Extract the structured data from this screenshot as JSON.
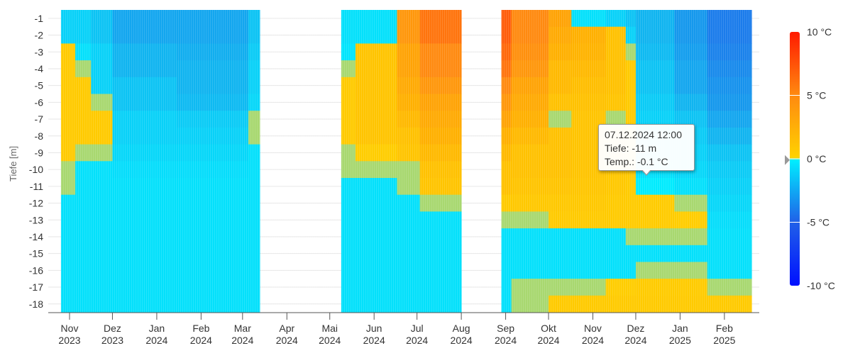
{
  "chart_data": {
    "type": "heatmap",
    "ylabel": "Tiefe [m]",
    "y_categories": [
      "-1",
      "-2",
      "-3",
      "-4",
      "-5",
      "-6",
      "-7",
      "-8",
      "-9",
      "-10",
      "-11",
      "-12",
      "-13",
      "-14",
      "-15",
      "-16",
      "-17",
      "-18"
    ],
    "x_ticks": [
      {
        "date": "2023-11-01",
        "month": "Nov",
        "year": "2023"
      },
      {
        "date": "2023-12-01",
        "month": "Dez",
        "year": "2023"
      },
      {
        "date": "2024-01-01",
        "month": "Jan",
        "year": "2024"
      },
      {
        "date": "2024-02-01",
        "month": "Feb",
        "year": "2024"
      },
      {
        "date": "2024-03-01",
        "month": "Mar",
        "year": "2024"
      },
      {
        "date": "2024-04-01",
        "month": "Apr",
        "year": "2024"
      },
      {
        "date": "2024-05-01",
        "month": "Mai",
        "year": "2024"
      },
      {
        "date": "2024-06-01",
        "month": "Jun",
        "year": "2024"
      },
      {
        "date": "2024-07-01",
        "month": "Jul",
        "year": "2024"
      },
      {
        "date": "2024-08-01",
        "month": "Aug",
        "year": "2024"
      },
      {
        "date": "2024-09-01",
        "month": "Sep",
        "year": "2024"
      },
      {
        "date": "2024-10-01",
        "month": "Okt",
        "year": "2024"
      },
      {
        "date": "2024-11-01",
        "month": "Nov",
        "year": "2024"
      },
      {
        "date": "2024-12-01",
        "month": "Dez",
        "year": "2024"
      },
      {
        "date": "2025-01-01",
        "month": "Jan",
        "year": "2025"
      },
      {
        "date": "2025-02-01",
        "month": "Feb",
        "year": "2025"
      }
    ],
    "x_range": [
      "2023-10-20",
      "2025-02-28"
    ],
    "columns": [
      {
        "start": "2023-10-26",
        "end": "2023-11-05",
        "t": [
          -1,
          -1,
          0.5,
          0.5,
          0.5,
          0.5,
          0.5,
          0.5,
          0.5,
          0,
          0,
          -0.5,
          -0.5,
          -0.5,
          -0.5,
          -0.5,
          -0.5,
          -0.5
        ]
      },
      {
        "start": "2023-11-05",
        "end": "2023-11-16",
        "t": [
          -1,
          -1,
          -0.5,
          0,
          0.5,
          0.5,
          0.5,
          0.5,
          0,
          -0.5,
          -0.5,
          -0.5,
          -0.5,
          -0.5,
          -0.5,
          -0.5,
          -0.5,
          -0.5
        ]
      },
      {
        "start": "2023-11-16",
        "end": "2023-12-01",
        "t": [
          -1.5,
          -1.5,
          -1,
          -1,
          -1,
          0,
          0.5,
          0.5,
          0,
          -0.5,
          -0.5,
          -0.5,
          -0.5,
          -0.5,
          -0.5,
          -0.5,
          -0.5,
          -0.5
        ]
      },
      {
        "start": "2023-12-01",
        "end": "2024-01-15",
        "t": [
          -2.5,
          -2.5,
          -2,
          -2,
          -1.5,
          -1.5,
          -1,
          -1,
          -0.8,
          -0.6,
          -0.5,
          -0.5,
          -0.5,
          -0.5,
          -0.5,
          -0.5,
          -0.5,
          -0.5
        ]
      },
      {
        "start": "2024-01-15",
        "end": "2024-03-05",
        "t": [
          -2.5,
          -2.5,
          -2.2,
          -2,
          -2,
          -1.8,
          -1.2,
          -1,
          -0.8,
          -0.6,
          -0.5,
          -0.5,
          -0.5,
          -0.5,
          -0.5,
          -0.5,
          -0.5,
          -0.5
        ]
      },
      {
        "start": "2024-03-05",
        "end": "2024-03-13",
        "t": [
          -1.5,
          -1.5,
          -1.2,
          -1,
          -1,
          -0.8,
          0,
          0,
          -0.5,
          -0.5,
          -0.5,
          -0.5,
          -0.5,
          -0.5,
          -0.5,
          -0.5,
          -0.5,
          -0.5
        ]
      },
      {
        "start": "2024-05-09",
        "end": "2024-05-19",
        "t": [
          -0.5,
          -0.5,
          -0.3,
          0,
          0.5,
          0.5,
          0.5,
          0.5,
          0,
          0,
          -0.5,
          -0.5,
          -0.5,
          -0.5,
          -0.5,
          -0.5,
          -0.5,
          -0.5
        ]
      },
      {
        "start": "2024-05-19",
        "end": "2024-06-17",
        "t": [
          -0.5,
          -0.5,
          0.8,
          0.8,
          0.8,
          0.8,
          0.8,
          0.8,
          0.3,
          0,
          -0.5,
          -0.5,
          -0.5,
          -0.5,
          -0.5,
          -0.5,
          -0.5,
          -0.5
        ]
      },
      {
        "start": "2024-06-17",
        "end": "2024-07-03",
        "t": [
          4,
          4,
          3,
          3,
          2.5,
          2,
          1.5,
          1,
          0.8,
          0,
          0,
          -0.5,
          -0.5,
          -0.5,
          -0.5,
          -0.5,
          -0.5,
          -0.5
        ]
      },
      {
        "start": "2024-07-03",
        "end": "2024-08-01",
        "t": [
          6,
          6,
          5,
          5,
          4,
          3,
          2.5,
          2,
          1.5,
          1,
          0.8,
          0,
          -0.5,
          -0.5,
          -0.5,
          -0.5,
          -0.5,
          -0.5
        ]
      },
      {
        "start": "2024-08-29",
        "end": "2024-09-05",
        "t": [
          7,
          7,
          6.5,
          6,
          5,
          4,
          3,
          2,
          1.5,
          1,
          1,
          0.5,
          0,
          -0.5,
          -0.5,
          -0.5,
          -0.5,
          -0.5
        ]
      },
      {
        "start": "2024-09-05",
        "end": "2024-10-01",
        "t": [
          5,
          5,
          4.5,
          4,
          3,
          2.5,
          2,
          1.5,
          1,
          1,
          0.8,
          0.6,
          0,
          -0.5,
          -0.5,
          -0.5,
          0,
          0
        ]
      },
      {
        "start": "2024-10-01",
        "end": "2024-10-17",
        "t": [
          3,
          2.5,
          2,
          1.5,
          1.5,
          1,
          0,
          1,
          1,
          1,
          0.8,
          0.6,
          0.5,
          -0.5,
          -0.5,
          -0.5,
          0,
          0.5
        ]
      },
      {
        "start": "2024-10-17",
        "end": "2024-11-10",
        "t": [
          -0.5,
          2,
          1.8,
          1.5,
          1.2,
          1,
          0.8,
          0.8,
          0.8,
          0.8,
          0.7,
          0.6,
          0.5,
          -0.5,
          -0.5,
          -0.5,
          0,
          0.5
        ]
      },
      {
        "start": "2024-11-10",
        "end": "2024-11-24",
        "t": [
          -1,
          1,
          1,
          1,
          1,
          0.8,
          0,
          0.8,
          0.8,
          0.6,
          0.6,
          0.5,
          0.5,
          -0.5,
          -0.5,
          -0.5,
          0.3,
          0.5
        ]
      },
      {
        "start": "2024-11-24",
        "end": "2024-12-01",
        "t": [
          -1.5,
          -1,
          0,
          0.5,
          0.5,
          0.5,
          0.5,
          0.5,
          0.5,
          0.5,
          0.4,
          0.4,
          0.4,
          0,
          -0.5,
          -0.5,
          0.3,
          0.5
        ]
      },
      {
        "start": "2024-12-01",
        "end": "2024-12-28",
        "t": [
          -2,
          -2,
          -1.8,
          -1.5,
          -1.5,
          -1.2,
          -1,
          -1,
          -0.8,
          -0.5,
          -0.1,
          0.4,
          0.4,
          0,
          -0.5,
          0,
          0.4,
          0.5
        ]
      },
      {
        "start": "2024-12-28",
        "end": "2025-01-20",
        "t": [
          -3,
          -3,
          -2.8,
          -2.5,
          -2.5,
          -2,
          -1.5,
          -1.2,
          -1,
          -0.8,
          -0.5,
          0,
          0.3,
          0,
          -0.5,
          0,
          0.4,
          0.5
        ]
      },
      {
        "start": "2025-01-20",
        "end": "2025-02-20",
        "t": [
          -4,
          -4,
          -3.8,
          -3.5,
          -3.2,
          -3,
          -2.5,
          -2,
          -1.5,
          -1.2,
          -1,
          -0.8,
          -0.6,
          -0.5,
          -0.5,
          -0.5,
          0,
          0.5
        ]
      }
    ],
    "colorbar": {
      "min": -10,
      "max": 10,
      "labels": [
        "10 °C",
        "5 °C",
        "0 °C",
        "-5 °C",
        "-10 °C"
      ],
      "label_values": [
        10,
        5,
        0,
        -5,
        -10
      ],
      "marker_value": -0.1
    },
    "tooltip": {
      "line1": "07.12.2024 12:00",
      "line2": "Tiefe: -11 m",
      "line3": "Temp.: -0.1 °C"
    },
    "colors": {
      "cold_max": "#0010ff",
      "cold_mid": "#2060e8",
      "cold_low": "#10b4f0",
      "zero_minus": "#00eeff",
      "zero": "#a8d870",
      "zero_plus": "#ffd200",
      "warm_mid": "#ff8a10",
      "warm_max": "#ff1a00"
    }
  }
}
